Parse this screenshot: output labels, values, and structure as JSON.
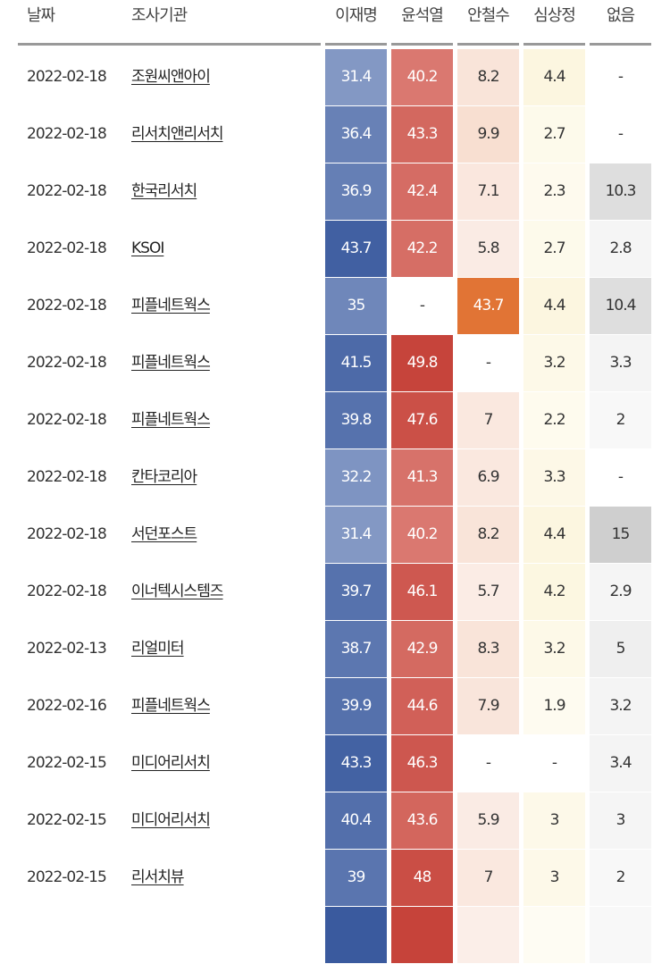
{
  "headers": [
    "날짜",
    "조사기관",
    "이재명",
    "윤석열",
    "안철수",
    "심상정",
    "없음"
  ],
  "rows": [
    {
      "date": "2022-02-18",
      "agency": "조원씨앤아이",
      "values": [
        "31.4",
        "40.2",
        "8.2",
        "4.4",
        "-"
      ]
    },
    {
      "date": "2022-02-18",
      "agency": "리서치앤리서치",
      "values": [
        "36.4",
        "43.3",
        "9.9",
        "2.7",
        "-"
      ]
    },
    {
      "date": "2022-02-18",
      "agency": "한국리서치",
      "values": [
        "36.9",
        "42.4",
        "7.1",
        "2.3",
        "10.3"
      ]
    },
    {
      "date": "2022-02-18",
      "agency": "KSOI",
      "values": [
        "43.7",
        "42.2",
        "5.8",
        "2.7",
        "2.8"
      ]
    },
    {
      "date": "2022-02-18",
      "agency": "피플네트웍스",
      "values": [
        "35",
        "-",
        "43.7",
        "4.4",
        "10.4"
      ]
    },
    {
      "date": "2022-02-18",
      "agency": "피플네트웍스",
      "values": [
        "41.5",
        "49.8",
        "-",
        "3.2",
        "3.3"
      ]
    },
    {
      "date": "2022-02-18",
      "agency": "피플네트웍스",
      "values": [
        "39.8",
        "47.6",
        "7",
        "2.2",
        "2"
      ]
    },
    {
      "date": "2022-02-18",
      "agency": "칸타코리아",
      "values": [
        "32.2",
        "41.3",
        "6.9",
        "3.3",
        "-"
      ]
    },
    {
      "date": "2022-02-18",
      "agency": "서던포스트",
      "values": [
        "31.4",
        "40.2",
        "8.2",
        "4.4",
        "15"
      ]
    },
    {
      "date": "2022-02-18",
      "agency": "이너텍시스템즈",
      "values": [
        "39.7",
        "46.1",
        "5.7",
        "4.2",
        "2.9"
      ]
    },
    {
      "date": "2022-02-13",
      "agency": "리얼미터",
      "values": [
        "38.7",
        "42.9",
        "8.3",
        "3.2",
        "5"
      ]
    },
    {
      "date": "2022-02-16",
      "agency": "피플네트웍스",
      "values": [
        "39.9",
        "44.6",
        "7.9",
        "1.9",
        "3.2"
      ]
    },
    {
      "date": "2022-02-15",
      "agency": "미디어리서치",
      "values": [
        "43.3",
        "46.3",
        "-",
        "-",
        "3.4"
      ]
    },
    {
      "date": "2022-02-15",
      "agency": "미디어리서치",
      "values": [
        "40.4",
        "43.6",
        "5.9",
        "3",
        "3"
      ]
    },
    {
      "date": "2022-02-15",
      "agency": "리서치뷰",
      "values": [
        "39",
        "48",
        "7",
        "3",
        "2"
      ]
    }
  ],
  "colors": {
    "lee": [
      "#8a9ec8",
      "#3a5a9e"
    ],
    "yoon": [
      "#dc7f77",
      "#c6433a"
    ],
    "ahn": [
      "#fbeee8",
      "#e0702f"
    ],
    "sim": [
      "#fefcf3",
      "#fcf5dc"
    ],
    "none": [
      "#f8f8f8",
      "#cfcfcf"
    ]
  }
}
